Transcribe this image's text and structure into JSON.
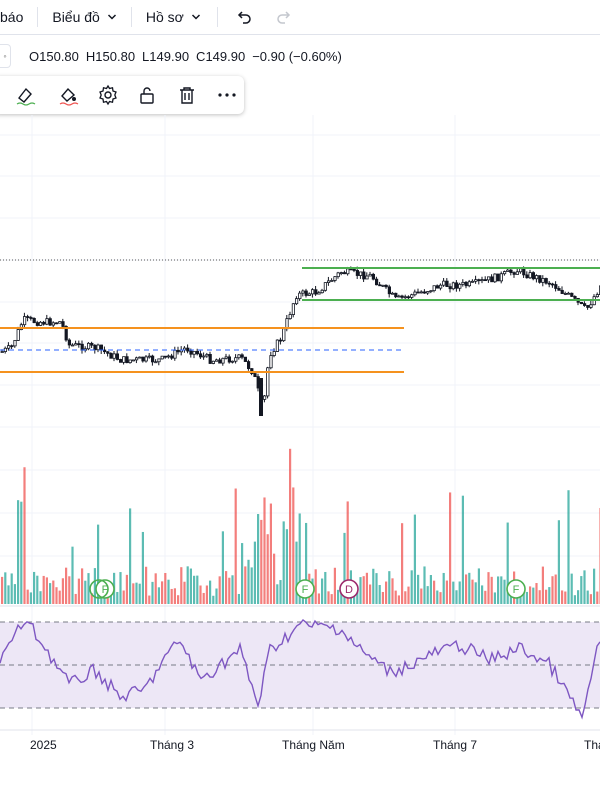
{
  "toolbar": {
    "items": [
      {
        "label": "báo",
        "has_dropdown": false
      },
      {
        "label": "Biểu đồ",
        "has_dropdown": true
      },
      {
        "label": "Hồ sơ",
        "has_dropdown": true
      }
    ],
    "undo_icon": "undo-icon",
    "redo_icon": "redo-icon"
  },
  "legend": {
    "open_label": "O",
    "open": "150.80",
    "high_label": "H",
    "high": "150.80",
    "low_label": "L",
    "low": "149.90",
    "close_label": "C",
    "close": "149.90",
    "change": "−0.90 (−0.60%)"
  },
  "drawing_toolbar": {
    "icons": [
      "line-color-icon",
      "fill-color-icon",
      "text-color-icon",
      "settings-gear-icon",
      "lock-icon",
      "trash-icon",
      "more-icon"
    ]
  },
  "colors": {
    "up": "#26a69a",
    "down": "#ef5350",
    "candle": "#131722",
    "orange_zone": "#f5921e",
    "green_zone": "#4caf50",
    "rsi_line": "#7e57c2",
    "rsi_band": "#ede7f6",
    "grid": "#f0f3fa",
    "event_green": "#4caf50",
    "event_purple": "#9c2a6c"
  },
  "chart_data": {
    "type": "candlestick",
    "x_ticks": [
      "2025",
      "Tháng 3",
      "Tháng Năm",
      "Tháng 7",
      "Thá"
    ],
    "markers": [
      {
        "label": "F",
        "color": "green"
      },
      {
        "label": "F",
        "color": "green"
      },
      {
        "label": "D",
        "color": "purple"
      },
      {
        "label": "F",
        "color": "green"
      }
    ],
    "panes": [
      "price",
      "volume",
      "rsi"
    ],
    "rsi_levels": [
      70,
      50,
      30
    ]
  }
}
